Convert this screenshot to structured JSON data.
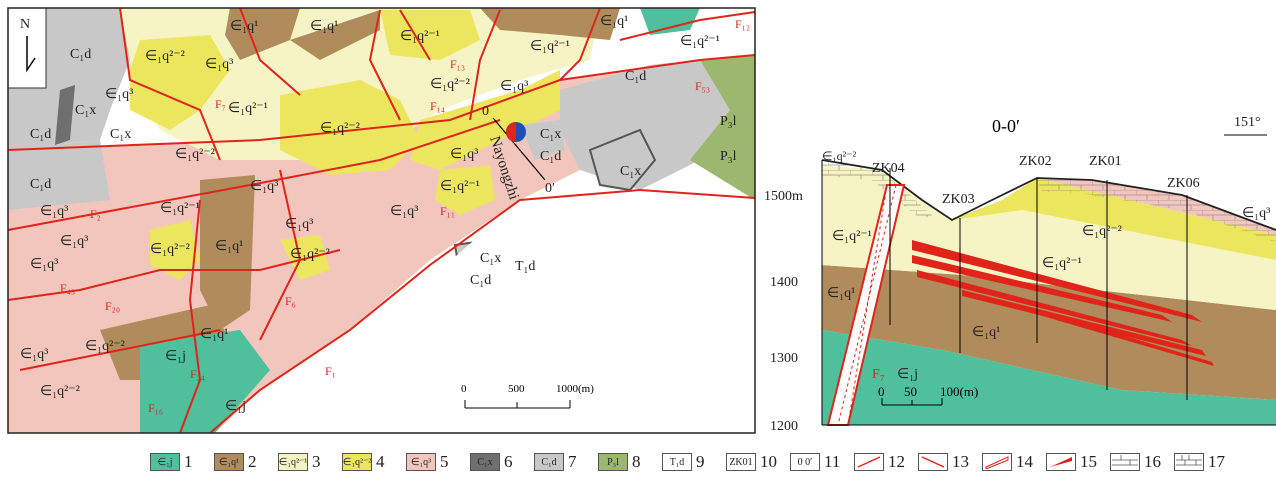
{
  "colors": {
    "C1d_gray": "#c8c8c8",
    "C1x_dark": "#6f6f6f",
    "P3l_green": "#9cb86f",
    "q1_brown": "#b08c5c",
    "q21_cream": "#f6f4c4",
    "q22_yellow": "#ebe65e",
    "q3_pink": "#f2c6bd",
    "j_teal": "#4fbf9c",
    "fault_red": "#e0241a"
  },
  "map": {
    "north_label": "N",
    "units": {
      "q1": "∈₁q¹",
      "q21": "∈₁q²⁻¹",
      "q22": "∈₁q²⁻²",
      "q3": "∈₁q³",
      "C1d": "C₁d",
      "C1x": "C₁x",
      "P3l": "P₃l",
      "T1d": "T₁d",
      "j": "∈₁j"
    },
    "faults": {
      "F1": "F₁",
      "F2": "F₂",
      "F6": "F₆",
      "F7": "F₇",
      "F11": "F₁₁",
      "F12": "F₁₂",
      "F13": "F₁₃",
      "F14": "F₁₄",
      "F16": "F₁₆",
      "F20": "F₂₀",
      "F24": "F₂₄",
      "F43": "F₄₃",
      "F53": "F₅₃"
    },
    "section_start": "0",
    "section_end": "0′",
    "place_name": "Nayongzhi",
    "scale_ticks": [
      "0",
      "500",
      "1000(m)"
    ]
  },
  "section": {
    "title": "0-0′",
    "orientation": "151°",
    "y_axis": [
      "1500m",
      "1400",
      "1300",
      "1200"
    ],
    "boreholes": [
      "ZK04",
      "ZK03",
      "ZK02",
      "ZK01",
      "ZK06"
    ],
    "fault": "F₇",
    "scale_ticks": [
      "0",
      "50",
      "100(m)"
    ]
  },
  "legend": [
    {
      "sample": "∈₁j",
      "num": "1",
      "color": "#4fbf9c"
    },
    {
      "sample": "∈₁q¹",
      "num": "2",
      "color": "#b08c5c"
    },
    {
      "sample": "∈₁q²⁻¹",
      "num": "3",
      "color": "#f6f4c4"
    },
    {
      "sample": "∈₁q²⁻²",
      "num": "4",
      "color": "#ebe65e"
    },
    {
      "sample": "∈₁q³",
      "num": "5",
      "color": "#f2c6bd"
    },
    {
      "sample": "C₁x",
      "num": "6",
      "color": "#6f6f6f"
    },
    {
      "sample": "C₁d",
      "num": "7",
      "color": "#c8c8c8"
    },
    {
      "sample": "P₃l",
      "num": "8",
      "color": "#9cb86f"
    },
    {
      "sample": "T₁d",
      "num": "9",
      "color": "#ffffff"
    },
    {
      "sample": "ZK01",
      "num": "10",
      "color": "#ffffff"
    },
    {
      "sample": "0 0′",
      "num": "11",
      "color": "#ffffff"
    },
    {
      "sample": "",
      "num": "12",
      "color": "#ffffff"
    },
    {
      "sample": "",
      "num": "13",
      "color": "#ffffff"
    },
    {
      "sample": "",
      "num": "14",
      "color": "#ffffff"
    },
    {
      "sample": "",
      "num": "15",
      "color": "#ffffff"
    },
    {
      "sample": "",
      "num": "16",
      "color": "#ffffff"
    },
    {
      "sample": "",
      "num": "17",
      "color": "#ffffff"
    }
  ]
}
